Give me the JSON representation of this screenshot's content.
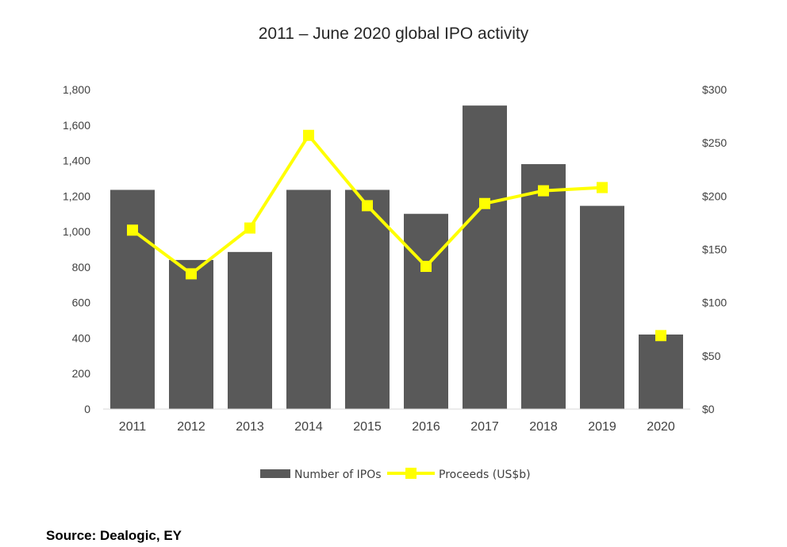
{
  "chart_data": {
    "type": "bar",
    "title": "2011 – June 2020 global IPO activity",
    "categories": [
      "2011",
      "2012",
      "2013",
      "2014",
      "2015",
      "2016",
      "2017",
      "2018",
      "2019",
      "2020"
    ],
    "series": [
      {
        "name": "Number of IPOs",
        "type": "bar",
        "axis": "left",
        "color": "#595959",
        "values": [
          1235,
          840,
          885,
          1235,
          1235,
          1100,
          1710,
          1380,
          1145,
          420
        ]
      },
      {
        "name": "Proceeds (US$b)",
        "type": "line",
        "axis": "right",
        "color": "#FFFF00",
        "values": [
          168,
          127,
          170,
          257,
          191,
          134,
          193,
          205,
          208,
          69
        ]
      }
    ],
    "y_left": {
      "range": [
        0,
        1800
      ],
      "ticks": [
        0,
        200,
        400,
        600,
        800,
        1000,
        1200,
        1400,
        1600,
        1800
      ],
      "tick_labels": [
        "0",
        "200",
        "400",
        "600",
        "800",
        "1,000",
        "1,200",
        "1,400",
        "1,600",
        "1,800"
      ]
    },
    "y_right": {
      "range": [
        0,
        300
      ],
      "ticks": [
        0,
        50,
        100,
        150,
        200,
        250,
        300
      ],
      "tick_labels": [
        "$0",
        "$50",
        "$100",
        "$150",
        "$200",
        "$250",
        "$300"
      ]
    },
    "grid": false,
    "legend_position": "bottom"
  },
  "source": "Source: Dealogic, EY"
}
